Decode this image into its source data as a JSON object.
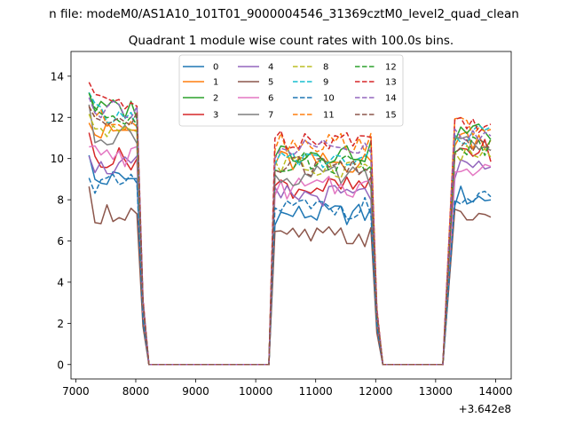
{
  "chart_data": {
    "type": "line",
    "suptitle": "n file: modeM0/AS1A10_101T01_9000004546_31369cztM0_level2_quad_clean",
    "title": "Quadrant 1 module wise count rates with 100.0s bins.",
    "xlabel": "",
    "ylabel": "",
    "x_offset_label": "+3.642e8",
    "xlim": [
      6920,
      14260
    ],
    "ylim": [
      -0.7,
      15.2
    ],
    "xticks": [
      7000,
      8000,
      9000,
      10000,
      11000,
      12000,
      13000,
      14000
    ],
    "xtick_labels": [
      "7000",
      "8000",
      "9000",
      "10000",
      "11000",
      "12000",
      "13000",
      "14000"
    ],
    "yticks": [
      0,
      2,
      4,
      6,
      8,
      10,
      12,
      14
    ],
    "ytick_labels": [
      "0",
      "2",
      "4",
      "6",
      "8",
      "10",
      "12",
      "14"
    ],
    "legend_location": "upper center",
    "segments": [
      {
        "x_start": 7220,
        "x_end": 8020,
        "zero_until": 10220
      },
      {
        "x_start": 10320,
        "x_end": 11920,
        "zero_until": 13120
      },
      {
        "x_start": 13320,
        "x_end": 13920,
        "zero_until": null
      }
    ],
    "x_step": 100,
    "series": [
      {
        "name": "0",
        "color": "#1f77b4",
        "dash": "solid",
        "levels": [
          9.0,
          7.3,
          8.1
        ]
      },
      {
        "name": "1",
        "color": "#ff7f0e",
        "dash": "solid",
        "levels": [
          11.3,
          9.8,
          11.0
        ]
      },
      {
        "name": "2",
        "color": "#2ca02c",
        "dash": "solid",
        "levels": [
          12.4,
          10.3,
          11.3
        ]
      },
      {
        "name": "3",
        "color": "#d62728",
        "dash": "solid",
        "levels": [
          10.0,
          8.6,
          10.4
        ]
      },
      {
        "name": "4",
        "color": "#9467bd",
        "dash": "solid",
        "levels": [
          9.6,
          8.2,
          9.4
        ]
      },
      {
        "name": "5",
        "color": "#8c564b",
        "dash": "solid",
        "levels": [
          7.4,
          6.2,
          7.2
        ]
      },
      {
        "name": "6",
        "color": "#e377c2",
        "dash": "solid",
        "levels": [
          10.1,
          8.6,
          9.7
        ]
      },
      {
        "name": "7",
        "color": "#7f7f7f",
        "dash": "solid",
        "levels": [
          11.2,
          9.1,
          10.6
        ]
      },
      {
        "name": "8",
        "color": "#bcbd22",
        "dash": "dashed",
        "levels": [
          11.5,
          9.6,
          10.2
        ]
      },
      {
        "name": "9",
        "color": "#17becf",
        "dash": "dashed",
        "levels": [
          12.0,
          9.9,
          11.2
        ]
      },
      {
        "name": "10",
        "color": "#1f77b4",
        "dash": "dashed",
        "levels": [
          8.7,
          7.6,
          7.9
        ]
      },
      {
        "name": "11",
        "color": "#ff7f0e",
        "dash": "dashed",
        "levels": [
          11.9,
          10.8,
          11.6
        ]
      },
      {
        "name": "12",
        "color": "#2ca02c",
        "dash": "dashed",
        "levels": [
          12.1,
          9.8,
          10.7
        ]
      },
      {
        "name": "13",
        "color": "#d62728",
        "dash": "dashed",
        "levels": [
          12.8,
          11.0,
          11.8
        ]
      },
      {
        "name": "14",
        "color": "#9467bd",
        "dash": "dashed",
        "levels": [
          12.5,
          10.4,
          11.0
        ]
      },
      {
        "name": "15",
        "color": "#8c564b",
        "dash": "dashed",
        "levels": [
          11.8,
          9.6,
          10.5
        ]
      }
    ]
  }
}
